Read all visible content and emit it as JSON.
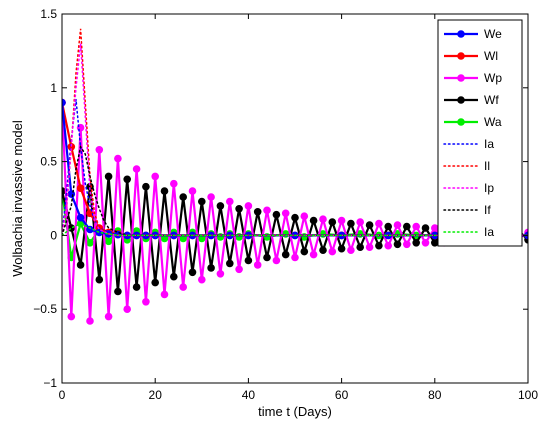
{
  "chart_data": {
    "type": "line",
    "title": "",
    "xlabel": "time t (Days)",
    "ylabel": "Wolbachia invassive model",
    "xlim": [
      0,
      100
    ],
    "ylim": [
      -1,
      1.5
    ],
    "xticks": [
      0,
      20,
      40,
      60,
      80,
      100
    ],
    "yticks": [
      -1,
      -0.5,
      0,
      0.5,
      1,
      1.5
    ],
    "xtick_labels": [
      "0",
      "20",
      "40",
      "60",
      "80",
      "100"
    ],
    "ytick_labels": [
      "−1",
      "−0.5",
      "0",
      "0.5",
      "1",
      "1.5"
    ],
    "grid": false,
    "legend": "top-right",
    "series": [
      {
        "name": "We",
        "color": "#0000ff",
        "style": "solid-marker",
        "x": [
          0,
          2,
          4,
          6,
          8,
          10,
          12,
          14,
          16,
          18,
          20,
          24,
          28,
          32,
          36,
          40,
          50,
          60,
          70,
          80,
          90,
          100
        ],
        "y": [
          0.9,
          0.28,
          0.12,
          0.04,
          0.02,
          0.01,
          0.005,
          0,
          0,
          0,
          0,
          0,
          0,
          0,
          0,
          0,
          0,
          0,
          0,
          0,
          0,
          0
        ]
      },
      {
        "name": "Wl",
        "color": "#ff0000",
        "style": "solid-marker",
        "x": [
          0,
          2,
          4,
          6,
          8,
          10,
          12,
          14,
          16,
          18,
          20,
          24,
          28,
          32,
          36,
          40,
          50,
          60,
          70,
          80,
          90,
          100
        ],
        "y": [
          0.9,
          0.6,
          0.32,
          0.15,
          0.05,
          0.02,
          0.01,
          0,
          0,
          0,
          0,
          0,
          0,
          0,
          0,
          0,
          0,
          0,
          0,
          0,
          0,
          0
        ]
      },
      {
        "name": "Wp",
        "color": "#ff00ff",
        "style": "solid-marker",
        "x": [
          0,
          2,
          4,
          6,
          8,
          10,
          12,
          14,
          16,
          18,
          20,
          22,
          24,
          26,
          28,
          30,
          32,
          34,
          36,
          38,
          40,
          42,
          44,
          46,
          48,
          50,
          52,
          54,
          56,
          58,
          60,
          62,
          64,
          66,
          68,
          70,
          72,
          74,
          76,
          78,
          80,
          82,
          84,
          86,
          88,
          90,
          92,
          94,
          96,
          98,
          100
        ],
        "y": [
          0.9,
          -0.55,
          0.73,
          -0.58,
          0.58,
          -0.55,
          0.52,
          -0.5,
          0.45,
          -0.45,
          0.4,
          -0.4,
          0.35,
          -0.35,
          0.3,
          -0.3,
          0.26,
          -0.26,
          0.23,
          -0.23,
          0.2,
          -0.2,
          0.17,
          -0.17,
          0.15,
          -0.15,
          0.13,
          -0.13,
          0.11,
          -0.11,
          0.1,
          -0.1,
          0.09,
          -0.08,
          0.08,
          -0.07,
          0.07,
          -0.06,
          0.06,
          -0.05,
          0.05,
          -0.05,
          0.04,
          -0.04,
          0.04,
          -0.03,
          0.03,
          -0.03,
          0.03,
          -0.02,
          0.02
        ]
      },
      {
        "name": "Wf",
        "color": "#000000",
        "style": "solid-marker",
        "x": [
          0,
          2,
          4,
          6,
          8,
          10,
          12,
          14,
          16,
          18,
          20,
          22,
          24,
          26,
          28,
          30,
          32,
          34,
          36,
          38,
          40,
          42,
          44,
          46,
          48,
          50,
          52,
          54,
          56,
          58,
          60,
          62,
          64,
          66,
          68,
          70,
          72,
          74,
          76,
          78,
          80,
          82,
          84,
          86,
          88,
          90,
          92,
          94,
          96,
          98,
          100
        ],
        "y": [
          0.3,
          0.05,
          -0.2,
          0.33,
          -0.3,
          0.4,
          -0.38,
          0.38,
          -0.35,
          0.33,
          -0.32,
          0.3,
          -0.28,
          0.26,
          -0.25,
          0.23,
          -0.22,
          0.2,
          -0.19,
          0.18,
          -0.17,
          0.16,
          -0.15,
          0.14,
          -0.13,
          0.12,
          -0.11,
          0.1,
          -0.1,
          0.09,
          -0.09,
          0.08,
          -0.08,
          0.07,
          -0.07,
          0.06,
          -0.06,
          0.06,
          -0.05,
          0.05,
          -0.05,
          0.04,
          -0.04,
          0.04,
          -0.04,
          0.04,
          -0.03,
          0.03,
          -0.03,
          0.03,
          -0.03
        ]
      },
      {
        "name": "Wa",
        "color": "#00ee00",
        "style": "solid-marker",
        "x": [
          0,
          2,
          4,
          6,
          8,
          10,
          12,
          14,
          16,
          18,
          20,
          22,
          24,
          26,
          28,
          30,
          32,
          34,
          36,
          38,
          40,
          44,
          48,
          52,
          56,
          60,
          64,
          68,
          72,
          76,
          80,
          84,
          88,
          92,
          96,
          100
        ],
        "y": [
          0.3,
          -0.15,
          0.08,
          -0.05,
          0.04,
          -0.04,
          0.03,
          -0.03,
          0.03,
          -0.02,
          0.02,
          -0.02,
          0.02,
          -0.02,
          0.02,
          -0.02,
          0.01,
          -0.01,
          0.01,
          -0.01,
          0.01,
          -0.01,
          0.01,
          -0.01,
          0.01,
          0,
          0.01,
          0,
          0.01,
          0,
          0,
          0,
          0,
          0,
          0,
          0
        ]
      },
      {
        "name": "Ia",
        "color": "#0000ff",
        "style": "dotted",
        "x": [
          0,
          1,
          2,
          3,
          4,
          5,
          6,
          7,
          8,
          10,
          12,
          100
        ],
        "y": [
          0,
          0.3,
          0.65,
          0.92,
          0.6,
          0.35,
          0.2,
          0.1,
          0.05,
          0.02,
          0,
          0
        ]
      },
      {
        "name": "Il",
        "color": "#ff0000",
        "style": "dotted",
        "x": [
          0,
          1,
          2,
          3,
          4,
          5,
          6,
          7,
          8,
          10,
          12,
          100
        ],
        "y": [
          0,
          0.2,
          0.6,
          1.1,
          1.4,
          0.9,
          0.4,
          0.15,
          0.05,
          0.01,
          0,
          0
        ]
      },
      {
        "name": "Ip",
        "color": "#ff00ff",
        "style": "dotted",
        "x": [
          0,
          1,
          2,
          3,
          4,
          5,
          6,
          7,
          8,
          10,
          12,
          100
        ],
        "y": [
          0,
          0.2,
          0.6,
          1.0,
          1.3,
          0.8,
          0.3,
          0.1,
          0.04,
          0.01,
          0,
          0
        ]
      },
      {
        "name": "If",
        "color": "#000000",
        "style": "dotted",
        "x": [
          0,
          2,
          3,
          4,
          5,
          6,
          7,
          8,
          9,
          10,
          12,
          14,
          100
        ],
        "y": [
          0,
          0.2,
          0.45,
          0.6,
          0.55,
          0.4,
          0.28,
          0.18,
          0.1,
          0.05,
          0.02,
          0,
          0
        ]
      },
      {
        "name": "Ia",
        "color": "#00ee00",
        "style": "dotted",
        "x": [
          0,
          2,
          4,
          6,
          8,
          10,
          12,
          100
        ],
        "y": [
          0,
          0.05,
          0.08,
          0.05,
          0.02,
          0.01,
          0,
          0
        ]
      }
    ]
  }
}
